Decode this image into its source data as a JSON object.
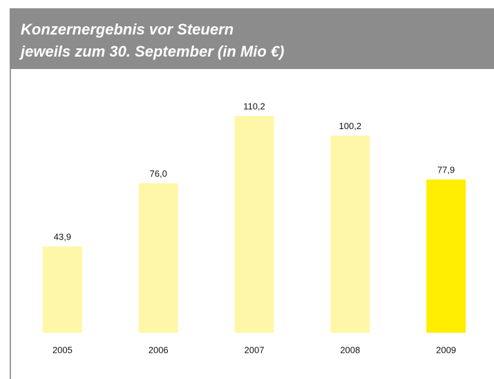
{
  "chart_data": {
    "type": "bar",
    "title": "Konzernergebnis vor Steuern",
    "subtitle": "jeweils zum 30. September (in Mio €)",
    "categories": [
      "2005",
      "2006",
      "2007",
      "2008",
      "2009"
    ],
    "values": [
      43.9,
      76.0,
      110.2,
      100.2,
      77.9
    ],
    "value_labels": [
      "43,9",
      "76,0",
      "110,2",
      "100,2",
      "77,9"
    ],
    "colors": [
      "#fff7a8",
      "#fff7a8",
      "#fff7a8",
      "#fff7a8",
      "#ffee00"
    ]
  }
}
